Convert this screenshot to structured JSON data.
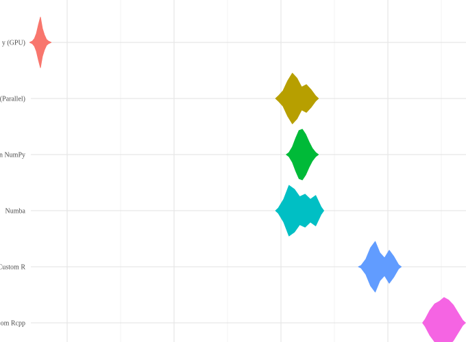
{
  "chart_data": {
    "type": "violin",
    "title": "",
    "xlabel": "",
    "ylabel": "",
    "grid": true,
    "categories_visible": [
      "y (GPU)",
      "(Parallel)",
      "n NumPy",
      "Numba",
      "Custom R",
      "om Rcpp"
    ],
    "xlim": [
      0,
      100
    ],
    "series": [
      {
        "category": "y (GPU)",
        "color": "#F8766D",
        "center": 5.0,
        "spread": 1.5,
        "shape": [
          0.05,
          0.15,
          0.35,
          0.7,
          1.0,
          0.55,
          0.3,
          0.12,
          0.05
        ]
      },
      {
        "category": "(Parallel)",
        "color": "#B79F00",
        "center": 53.0,
        "spread": 3.5,
        "shape": [
          0.1,
          0.3,
          0.7,
          1.0,
          0.8,
          0.45,
          0.55,
          0.35,
          0.1
        ]
      },
      {
        "category": "n NumPy",
        "color": "#00BA38",
        "center": 54.0,
        "spread": 2.5,
        "shape": [
          0.08,
          0.3,
          0.65,
          0.95,
          1.0,
          0.8,
          0.5,
          0.25,
          0.08
        ]
      },
      {
        "category": "Numba",
        "color": "#00BFC4",
        "center": 53.5,
        "spread": 4.0,
        "shape": [
          0.1,
          0.45,
          1.0,
          0.85,
          0.55,
          0.65,
          0.45,
          0.6,
          0.15
        ]
      },
      {
        "category": "Custom R",
        "color": "#619CFF",
        "center": 68.5,
        "spread": 3.5,
        "shape": [
          0.05,
          0.3,
          0.75,
          1.0,
          0.55,
          0.35,
          0.65,
          0.4,
          0.08
        ]
      },
      {
        "category": "om Rcpp",
        "color": "#F564E3",
        "center": 80.5,
        "spread": 3.5,
        "shape": [
          0.15,
          0.5,
          0.75,
          0.85,
          1.0,
          0.9,
          0.7,
          0.4,
          0.1
        ]
      }
    ]
  }
}
